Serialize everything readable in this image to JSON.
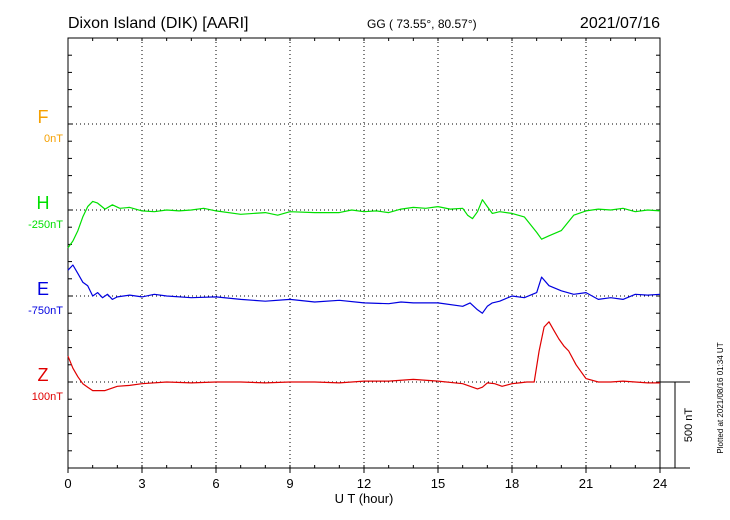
{
  "header": {
    "station": "Dixon Island (DIK)  [AARI]",
    "coords": "GG ( 73.55°,  80.57°)",
    "date": "2021/07/16"
  },
  "side_note": "Plotted at 2021/08/16 01:34 UT",
  "colors": {
    "F": "#f5a000",
    "H": "#00e000",
    "E": "#0000e0",
    "Z": "#e00000",
    "axis": "#000000"
  },
  "chart_data": {
    "type": "line",
    "title": "Dixon Island (DIK)  [AARI]",
    "xlabel": "U T (hour)",
    "ylabel": "",
    "xlim": [
      0,
      24
    ],
    "x_ticks": [
      "0",
      "3",
      "6",
      "9",
      "12",
      "15",
      "18",
      "21",
      "24"
    ],
    "scale_bar": "500 nT",
    "scale_bar_value_nT": 500,
    "grid": "dotted",
    "series": [
      {
        "name": "F",
        "baseline_label": "0nT",
        "baseline_nT": 0,
        "color": "#f5a000",
        "x": [],
        "y": []
      },
      {
        "name": "H",
        "baseline_label": "-250nT",
        "baseline_nT": -250,
        "color": "#00e000",
        "x": [
          0.0,
          0.2,
          0.4,
          0.6,
          0.8,
          1.0,
          1.2,
          1.5,
          1.8,
          2.1,
          2.5,
          3.0,
          3.5,
          4.0,
          4.5,
          5.0,
          5.5,
          6.0,
          7.0,
          8.0,
          8.5,
          9.0,
          10.0,
          11.0,
          11.5,
          12.0,
          12.5,
          13.0,
          13.5,
          14.0,
          14.5,
          15.0,
          15.5,
          16.0,
          16.2,
          16.4,
          16.6,
          16.8,
          17.0,
          17.2,
          17.5,
          18.0,
          18.5,
          19.0,
          19.2,
          19.5,
          20.0,
          20.5,
          21.0,
          21.5,
          22.0,
          22.5,
          23.0,
          23.5,
          24.0
        ],
        "y": [
          -220,
          -180,
          -120,
          -40,
          20,
          50,
          40,
          5,
          30,
          10,
          15,
          -5,
          -10,
          0,
          -5,
          0,
          10,
          -5,
          -25,
          -15,
          -30,
          -10,
          -15,
          -15,
          0,
          -10,
          -5,
          -15,
          5,
          15,
          10,
          20,
          5,
          10,
          -30,
          -50,
          -10,
          60,
          20,
          -20,
          -10,
          -20,
          -40,
          -130,
          -170,
          -150,
          -120,
          -30,
          -5,
          5,
          0,
          10,
          -10,
          0,
          -5
        ]
      },
      {
        "name": "E",
        "baseline_label": "-750nT",
        "baseline_nT": -750,
        "color": "#0000e0",
        "x": [
          0.0,
          0.2,
          0.4,
          0.6,
          0.8,
          1.0,
          1.2,
          1.4,
          1.6,
          1.8,
          2.0,
          2.5,
          3.0,
          3.5,
          4.0,
          5.0,
          6.0,
          7.0,
          8.0,
          9.0,
          10.0,
          11.0,
          12.0,
          13.0,
          13.5,
          14.0,
          15.0,
          16.0,
          16.3,
          16.6,
          16.8,
          17.0,
          17.2,
          17.5,
          18.0,
          18.5,
          19.0,
          19.2,
          19.5,
          20.0,
          20.5,
          21.0,
          21.5,
          22.0,
          22.5,
          23.0,
          23.5,
          24.0
        ],
        "y": [
          150,
          180,
          130,
          80,
          60,
          0,
          20,
          -10,
          10,
          -20,
          -5,
          5,
          -5,
          10,
          0,
          -10,
          -5,
          -20,
          -30,
          -20,
          -35,
          -25,
          -40,
          -45,
          -35,
          -40,
          -40,
          -60,
          -40,
          -80,
          -100,
          -60,
          -40,
          -30,
          0,
          -10,
          20,
          110,
          60,
          30,
          10,
          20,
          -20,
          -10,
          -20,
          10,
          5,
          10
        ]
      },
      {
        "name": "Z",
        "baseline_label": "100nT",
        "baseline_nT": 100,
        "color": "#e00000",
        "x": [
          0.0,
          0.2,
          0.4,
          0.6,
          0.8,
          1.0,
          1.5,
          2.0,
          2.5,
          3.0,
          4.0,
          5.0,
          6.0,
          7.0,
          8.0,
          9.0,
          10.0,
          11.0,
          12.0,
          13.0,
          14.0,
          15.0,
          16.0,
          16.3,
          16.6,
          16.8,
          17.0,
          17.3,
          17.6,
          18.0,
          18.3,
          18.6,
          18.9,
          19.1,
          19.3,
          19.5,
          19.7,
          19.9,
          20.1,
          20.3,
          20.6,
          21.0,
          21.5,
          22.0,
          22.5,
          23.0,
          23.5,
          24.0
        ],
        "y": [
          150,
          80,
          30,
          -10,
          -30,
          -50,
          -50,
          -25,
          -20,
          -10,
          0,
          -5,
          0,
          0,
          -5,
          0,
          0,
          -5,
          5,
          5,
          15,
          5,
          -10,
          -25,
          -40,
          -30,
          -5,
          -10,
          -25,
          -10,
          -5,
          0,
          0,
          180,
          320,
          350,
          300,
          250,
          210,
          180,
          100,
          20,
          0,
          0,
          5,
          0,
          -5,
          -5
        ]
      }
    ]
  }
}
